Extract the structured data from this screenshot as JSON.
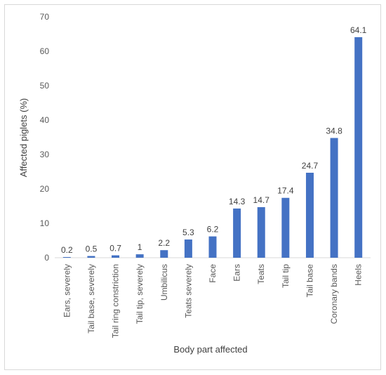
{
  "chart_data": {
    "type": "bar",
    "title": "",
    "xlabel": "Body part affected",
    "ylabel": "Affected piglets (%)",
    "ylim": [
      0,
      70
    ],
    "yticks": [
      0,
      10,
      20,
      30,
      40,
      50,
      60,
      70
    ],
    "grid": false,
    "legend": "none",
    "bar_color": "#4472C4",
    "categories": [
      "Ears, severely",
      "Tail base, severely",
      "Tail ring constriction",
      "Tail tip, severely",
      "Umbilicus",
      "Teats severely",
      "Face",
      "Ears",
      "Teats",
      "Tail tip",
      "Tail base",
      "Coronary bands",
      "Heels"
    ],
    "values": [
      0.2,
      0.5,
      0.7,
      1,
      2.2,
      5.3,
      6.2,
      14.3,
      14.7,
      17.4,
      24.7,
      34.8,
      64.1
    ],
    "data_labels": [
      "0.2",
      "0.5",
      "0.7",
      "1",
      "2.2",
      "5.3",
      "6.2",
      "14.3",
      "14.7",
      "17.4",
      "24.7",
      "34.8",
      "64.1"
    ]
  }
}
